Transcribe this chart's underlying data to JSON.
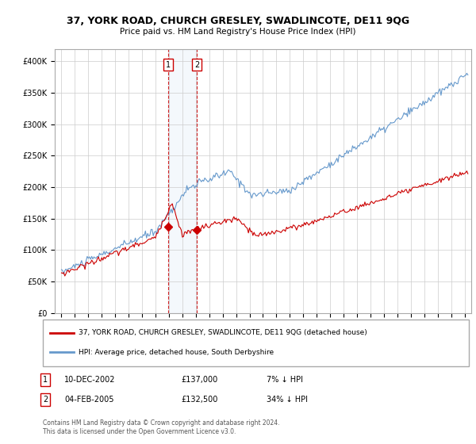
{
  "title": "37, YORK ROAD, CHURCH GRESLEY, SWADLINCOTE, DE11 9QG",
  "subtitle": "Price paid vs. HM Land Registry's House Price Index (HPI)",
  "legend_line1": "37, YORK ROAD, CHURCH GRESLEY, SWADLINCOTE, DE11 9QG (detached house)",
  "legend_line2": "HPI: Average price, detached house, South Derbyshire",
  "sale1_date": "10-DEC-2002",
  "sale1_price": 137000,
  "sale1_hpi": "7% ↓ HPI",
  "sale2_date": "04-FEB-2005",
  "sale2_price": 132500,
  "sale2_hpi": "34% ↓ HPI",
  "footer": "Contains HM Land Registry data © Crown copyright and database right 2024.\nThis data is licensed under the Open Government Licence v3.0.",
  "red_color": "#cc0000",
  "blue_color": "#6699cc",
  "bg_color": "#ffffff",
  "grid_color": "#cccccc",
  "sale1_x": 2002.93,
  "sale2_x": 2005.09,
  "sale1_y": 137000,
  "sale2_y": 132500,
  "ylim": [
    0,
    420000
  ],
  "xlim_start": 1994.5,
  "xlim_end": 2025.5,
  "yticks": [
    0,
    50000,
    100000,
    150000,
    200000,
    250000,
    300000,
    350000,
    400000
  ],
  "xtick_years": [
    1995,
    1996,
    1997,
    1998,
    1999,
    2000,
    2001,
    2002,
    2003,
    2004,
    2005,
    2006,
    2007,
    2008,
    2009,
    2010,
    2011,
    2012,
    2013,
    2014,
    2015,
    2016,
    2017,
    2018,
    2019,
    2020,
    2021,
    2022,
    2023,
    2024,
    2025
  ]
}
